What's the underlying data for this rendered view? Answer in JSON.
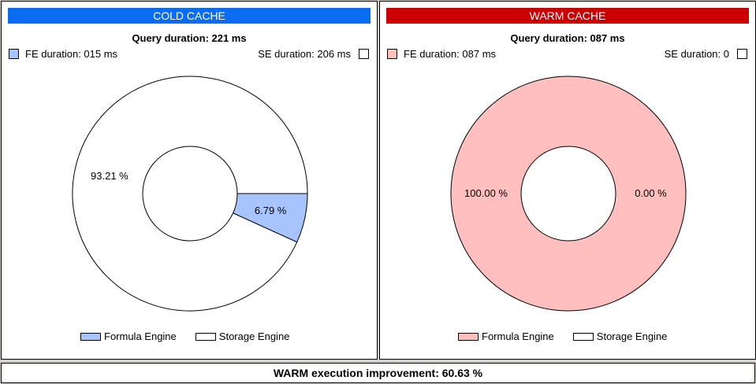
{
  "cold": {
    "header": "COLD CACHE",
    "header_color": "#0a6cf0",
    "query_duration": "Query duration: 221 ms",
    "fe_duration": "FE duration: 015 ms",
    "se_duration": "SE duration: 206 ms",
    "fe_color": "#a8c4ff",
    "se_color": "#ffffff",
    "slices": [
      {
        "label": "6.79 %",
        "value": 6.79,
        "series": "Formula Engine"
      },
      {
        "label": "93.21 %",
        "value": 93.21,
        "series": "Storage Engine"
      }
    ],
    "legend": [
      "Formula Engine",
      "Storage Engine"
    ]
  },
  "warm": {
    "header": "WARM CACHE",
    "header_color": "#cc0000",
    "query_duration": "Query duration: 087 ms",
    "fe_duration": "FE duration: 087 ms",
    "se_duration": "SE duration: 0",
    "fe_color": "#ffbfbf",
    "se_color": "#ffffff",
    "slices": [
      {
        "label": "100.00 %",
        "value": 100.0,
        "series": "Formula Engine"
      },
      {
        "label": "0.00 %",
        "value": 0.0,
        "series": "Storage Engine"
      }
    ],
    "legend": [
      "Formula Engine",
      "Storage Engine"
    ]
  },
  "footer": "WARM execution improvement: 60.63 %"
}
